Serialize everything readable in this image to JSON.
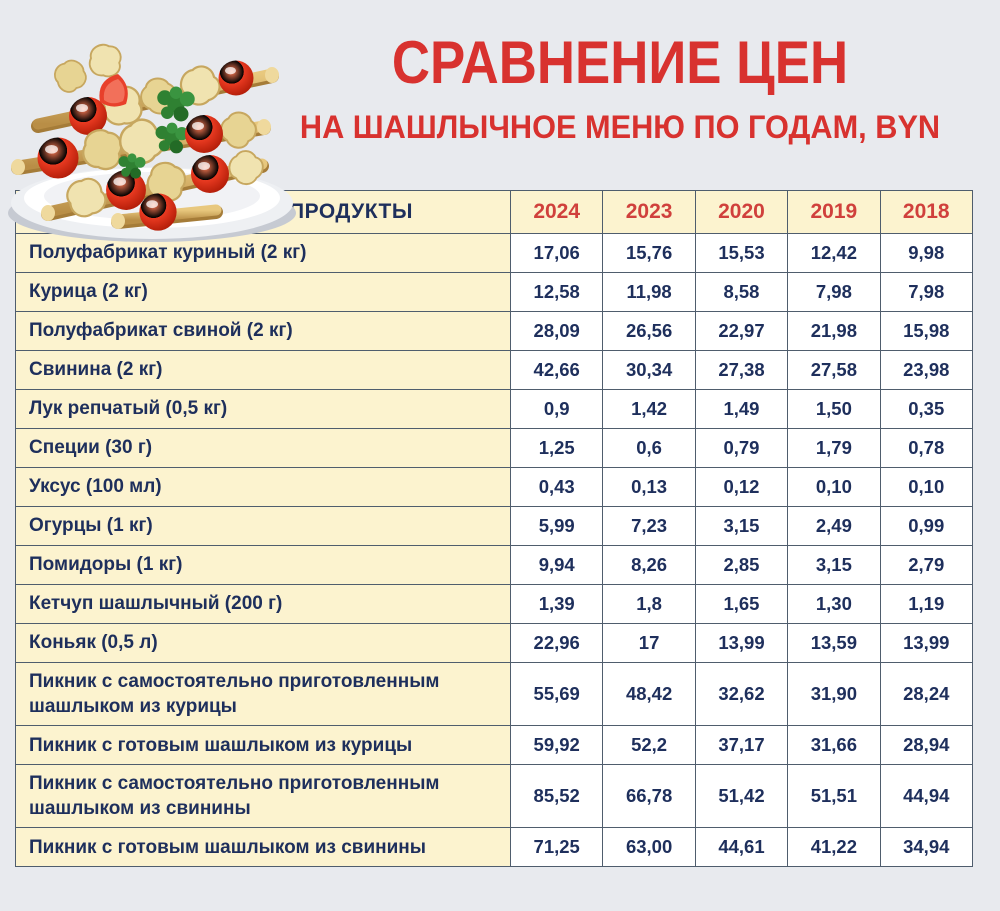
{
  "header": {
    "title": "СРАВНЕНИЕ ЦЕН",
    "subtitle": "НА ШАШЛЫЧНОЕ МЕНЮ ПО ГОДАМ, BYN"
  },
  "illustration": {
    "name": "shashlik-skewers-on-plate"
  },
  "colors": {
    "background": "#e8eaee",
    "accent_red": "#d8322f",
    "year_header_red": "#d0403c",
    "cell_yellow": "#fcf3cf",
    "cell_white": "#ffffff",
    "text_navy": "#1e2f5c",
    "table_border": "#4f5d6d"
  },
  "chart_data": {
    "type": "table",
    "title": "СРАВНЕНИЕ ЦЕН",
    "subtitle": "НА ШАШЛЫЧНОЕ МЕНЮ ПО ГОДАМ, BYN",
    "currency": "BYN",
    "columns": [
      "ПРОДУКТЫ",
      "2024",
      "2023",
      "2020",
      "2019",
      "2018"
    ],
    "rows": [
      {
        "product": "Полуфабрикат куриный (2 кг)",
        "values": [
          "17,06",
          "15,76",
          "15,53",
          "12,42",
          "9,98"
        ]
      },
      {
        "product": "Курица (2 кг)",
        "values": [
          "12,58",
          "11,98",
          "8,58",
          "7,98",
          "7,98"
        ]
      },
      {
        "product": "Полуфабрикат свиной (2 кг)",
        "values": [
          "28,09",
          "26,56",
          "22,97",
          "21,98",
          "15,98"
        ]
      },
      {
        "product": "Свинина (2 кг)",
        "values": [
          "42,66",
          "30,34",
          "27,38",
          "27,58",
          "23,98"
        ]
      },
      {
        "product": "Лук репчатый (0,5 кг)",
        "values": [
          "0,9",
          "1,42",
          "1,49",
          "1,50",
          "0,35"
        ]
      },
      {
        "product": "Специи (30 г)",
        "values": [
          "1,25",
          "0,6",
          "0,79",
          "1,79",
          "0,78"
        ]
      },
      {
        "product": "Уксус (100 мл)",
        "values": [
          "0,43",
          "0,13",
          "0,12",
          "0,10",
          "0,10"
        ]
      },
      {
        "product": "Огурцы (1 кг)",
        "values": [
          "5,99",
          "7,23",
          "3,15",
          "2,49",
          "0,99"
        ]
      },
      {
        "product": "Помидоры (1 кг)",
        "values": [
          "9,94",
          "8,26",
          "2,85",
          "3,15",
          "2,79"
        ]
      },
      {
        "product": "Кетчуп шашлычный (200 г)",
        "values": [
          "1,39",
          "1,8",
          "1,65",
          "1,30",
          "1,19"
        ]
      },
      {
        "product": "Коньяк (0,5 л)",
        "values": [
          "22,96",
          "17",
          "13,99",
          "13,59",
          "13,99"
        ]
      },
      {
        "product": "Пикник с самостоятельно приготовленным\nшашлыком из курицы",
        "values": [
          "55,69",
          "48,42",
          "32,62",
          "31,90",
          "28,24"
        ]
      },
      {
        "product": "Пикник с готовым шашлыком из курицы",
        "values": [
          "59,92",
          "52,2",
          "37,17",
          "31,66",
          "28,94"
        ]
      },
      {
        "product": "Пикник с самостоятельно приготовленным\nшашлыком из свинины",
        "values": [
          "85,52",
          "66,78",
          "51,42",
          "51,51",
          "44,94"
        ]
      },
      {
        "product": "Пикник с готовым шашлыком из свинины",
        "values": [
          "71,25",
          "63,00",
          "44,61",
          "41,22",
          "34,94"
        ]
      }
    ]
  }
}
